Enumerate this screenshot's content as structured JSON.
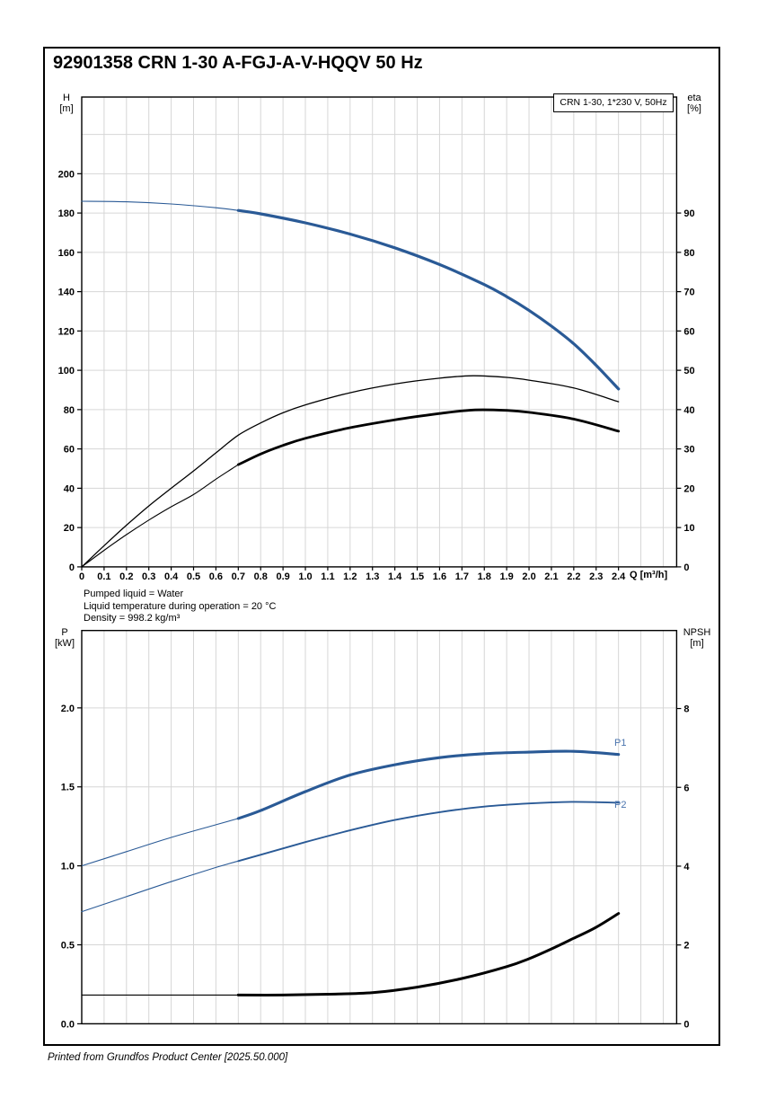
{
  "page": {
    "title": "92901358 CRN 1-30 A-FGJ-A-V-HQQV 50 Hz",
    "legend": "CRN 1-30, 1*230 V, 50Hz",
    "info_lines": [
      "Pumped liquid = Water",
      "Liquid temperature during operation = 20 °C",
      "Density = 998.2 kg/m³"
    ],
    "footer": "Printed from Grundfos Product Center [2025.50.000]",
    "colors": {
      "curve_blue": "#2a5a96",
      "label_blue": "#4a74ae",
      "curve_black": "#000000",
      "grid": "#d6d6d6",
      "frame": "#000000"
    }
  },
  "chart_data": [
    {
      "type": "line",
      "title": "",
      "xlabel": "Q [m³/h]",
      "left_unit": [
        "H",
        "[m]"
      ],
      "right_unit": [
        "eta",
        "[%]"
      ],
      "xlim": [
        0,
        2.66
      ],
      "ylim_left": [
        0,
        239
      ],
      "ylim_right": [
        0,
        119.5
      ],
      "grid": "on",
      "legend_position": "top-right",
      "x_tick_labels": [
        "0",
        "0.1",
        "0.2",
        "0.3",
        "0.4",
        "0.5",
        "0.6",
        "0.7",
        "0.8",
        "0.9",
        "1.0",
        "1.1",
        "1.2",
        "1.3",
        "1.4",
        "1.5",
        "1.6",
        "1.7",
        "1.8",
        "1.9",
        "2.0",
        "2.1",
        "2.2",
        "2.3",
        "2.4"
      ],
      "left_tick_labels": [
        "0",
        "20",
        "40",
        "60",
        "80",
        "100",
        "120",
        "140",
        "160",
        "180",
        "200"
      ],
      "right_tick_labels": [
        "0",
        "10",
        "20",
        "30",
        "40",
        "50",
        "60",
        "70",
        "80",
        "90"
      ],
      "left_grid_step": 20,
      "series": [
        {
          "name": "head-curve",
          "label": "",
          "axis": "left",
          "color": "#2a5a96",
          "bold_from": 0.7,
          "w": [
            1.1,
            3.2
          ],
          "points": [
            [
              0,
              186
            ],
            [
              0.2,
              185.7
            ],
            [
              0.4,
              184.6
            ],
            [
              0.6,
              182.7
            ],
            [
              0.7,
              181.3
            ],
            [
              0.8,
              179.6
            ],
            [
              1.0,
              175
            ],
            [
              1.2,
              169.3
            ],
            [
              1.4,
              162.3
            ],
            [
              1.6,
              153.8
            ],
            [
              1.8,
              143.6
            ],
            [
              1.9,
              137.5
            ],
            [
              2.0,
              130.5
            ],
            [
              2.1,
              122.5
            ],
            [
              2.2,
              113.5
            ],
            [
              2.3,
              102.5
            ],
            [
              2.4,
              90.5
            ]
          ]
        },
        {
          "name": "eta-pump-curve",
          "label": "",
          "axis": "right",
          "color": "#000000",
          "bold_from": null,
          "w": [
            1.3,
            1.3
          ],
          "points": [
            [
              0,
              0
            ],
            [
              0.1,
              5.4
            ],
            [
              0.2,
              10.6
            ],
            [
              0.3,
              15.5
            ],
            [
              0.4,
              20
            ],
            [
              0.5,
              24.4
            ],
            [
              0.6,
              29
            ],
            [
              0.7,
              33.5
            ],
            [
              0.8,
              36.6
            ],
            [
              0.9,
              39.2
            ],
            [
              1.0,
              41.2
            ],
            [
              1.2,
              44.3
            ],
            [
              1.4,
              46.5
            ],
            [
              1.6,
              48
            ],
            [
              1.75,
              48.6
            ],
            [
              1.9,
              48.2
            ],
            [
              2.0,
              47.5
            ],
            [
              2.2,
              45.5
            ],
            [
              2.4,
              42
            ]
          ]
        },
        {
          "name": "eta-total-curve",
          "label": "",
          "axis": "right",
          "color": "#000000",
          "bold_from": 0.7,
          "w": [
            1.1,
            2.8
          ],
          "points": [
            [
              0,
              0
            ],
            [
              0.1,
              4.2
            ],
            [
              0.2,
              8.2
            ],
            [
              0.3,
              11.9
            ],
            [
              0.4,
              15.3
            ],
            [
              0.5,
              18.4
            ],
            [
              0.6,
              22.3
            ],
            [
              0.7,
              26
            ],
            [
              0.8,
              28.7
            ],
            [
              0.9,
              30.9
            ],
            [
              1.0,
              32.7
            ],
            [
              1.2,
              35.4
            ],
            [
              1.4,
              37.4
            ],
            [
              1.6,
              39
            ],
            [
              1.75,
              39.9
            ],
            [
              1.9,
              39.8
            ],
            [
              2.0,
              39.3
            ],
            [
              2.2,
              37.6
            ],
            [
              2.4,
              34.5
            ]
          ]
        }
      ]
    },
    {
      "type": "line",
      "title": "",
      "xlabel": "",
      "left_unit": [
        "P",
        "[kW]"
      ],
      "right_unit": [
        "NPSH",
        "[m]"
      ],
      "xlim": [
        0,
        2.66
      ],
      "ylim_left": [
        0,
        2.49
      ],
      "ylim_right": [
        0,
        9.98
      ],
      "grid": "on",
      "x_tick_labels": [],
      "left_tick_labels": [
        "0.0",
        "0.5",
        "1.0",
        "1.5",
        "2.0"
      ],
      "right_tick_labels": [
        "0",
        "2",
        "4",
        "6",
        "8"
      ],
      "left_grid_step": 0.5,
      "series": [
        {
          "name": "p1-curve",
          "label": "P1",
          "axis": "left",
          "color": "#2a5a96",
          "bold_from": 0.7,
          "w": [
            1.1,
            3.1
          ],
          "points": [
            [
              0,
              1.0
            ],
            [
              0.2,
              1.09
            ],
            [
              0.4,
              1.18
            ],
            [
              0.6,
              1.26
            ],
            [
              0.7,
              1.3
            ],
            [
              0.8,
              1.35
            ],
            [
              1.0,
              1.47
            ],
            [
              1.2,
              1.575
            ],
            [
              1.4,
              1.64
            ],
            [
              1.6,
              1.685
            ],
            [
              1.8,
              1.71
            ],
            [
              2.0,
              1.72
            ],
            [
              2.2,
              1.725
            ],
            [
              2.4,
              1.705
            ]
          ]
        },
        {
          "name": "p2-curve",
          "label": "P2",
          "axis": "left",
          "color": "#2a5a96",
          "bold_from": 0.7,
          "w": [
            1.1,
            1.9
          ],
          "points": [
            [
              0,
              0.71
            ],
            [
              0.2,
              0.805
            ],
            [
              0.4,
              0.9
            ],
            [
              0.6,
              0.99
            ],
            [
              0.7,
              1.03
            ],
            [
              0.8,
              1.07
            ],
            [
              1.0,
              1.15
            ],
            [
              1.2,
              1.225
            ],
            [
              1.4,
              1.29
            ],
            [
              1.6,
              1.34
            ],
            [
              1.8,
              1.375
            ],
            [
              2.0,
              1.395
            ],
            [
              2.2,
              1.405
            ],
            [
              2.4,
              1.4
            ]
          ]
        },
        {
          "name": "npsh-curve",
          "label": "",
          "axis": "right",
          "color": "#000000",
          "bold_from": 0.7,
          "w": [
            1.1,
            3.0
          ],
          "points": [
            [
              0,
              0.73
            ],
            [
              0.3,
              0.73
            ],
            [
              0.6,
              0.73
            ],
            [
              0.7,
              0.73
            ],
            [
              0.9,
              0.73
            ],
            [
              1.1,
              0.75
            ],
            [
              1.3,
              0.79
            ],
            [
              1.5,
              0.93
            ],
            [
              1.7,
              1.15
            ],
            [
              1.9,
              1.45
            ],
            [
              2.0,
              1.65
            ],
            [
              2.1,
              1.9
            ],
            [
              2.2,
              2.17
            ],
            [
              2.3,
              2.45
            ],
            [
              2.4,
              2.8
            ]
          ]
        }
      ]
    }
  ]
}
